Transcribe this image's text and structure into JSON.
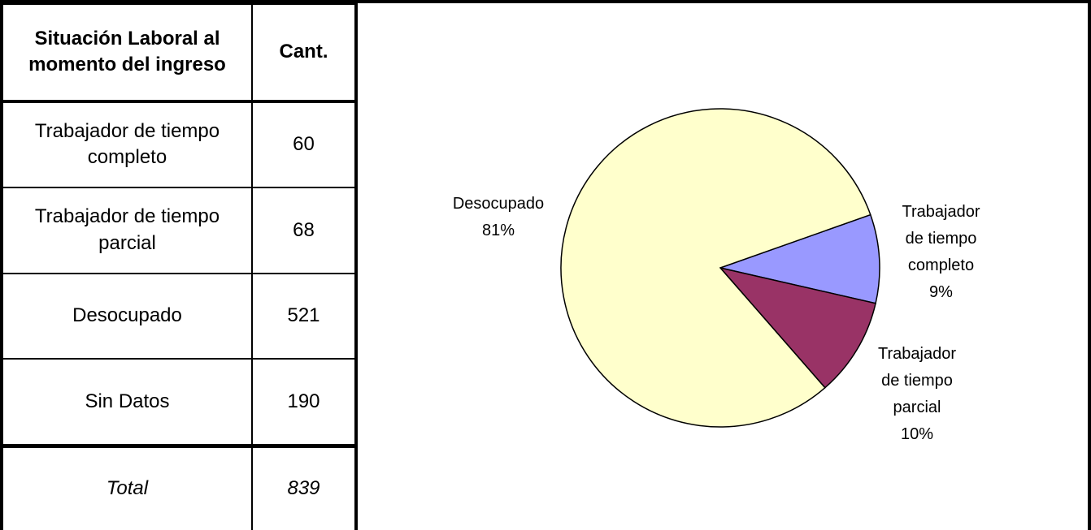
{
  "table": {
    "header": [
      "Situación Laboral al momento del ingreso",
      "Cant."
    ],
    "rows": [
      [
        "Trabajador de tiempo completo",
        60
      ],
      [
        "Trabajador de tiempo parcial",
        68
      ],
      [
        "Desocupado",
        521
      ],
      [
        "Sin Datos",
        190
      ]
    ],
    "total": [
      "Total",
      839
    ]
  },
  "chart_data": {
    "type": "pie",
    "categories": [
      "Trabajador de tiempo completo",
      "Trabajador de tiempo parcial",
      "Desocupado"
    ],
    "values": [
      9,
      10,
      81
    ],
    "value_labels": [
      "9%",
      "10%",
      "81%"
    ],
    "colors": [
      "#9999ff",
      "#993366",
      "#ffffcc"
    ]
  }
}
